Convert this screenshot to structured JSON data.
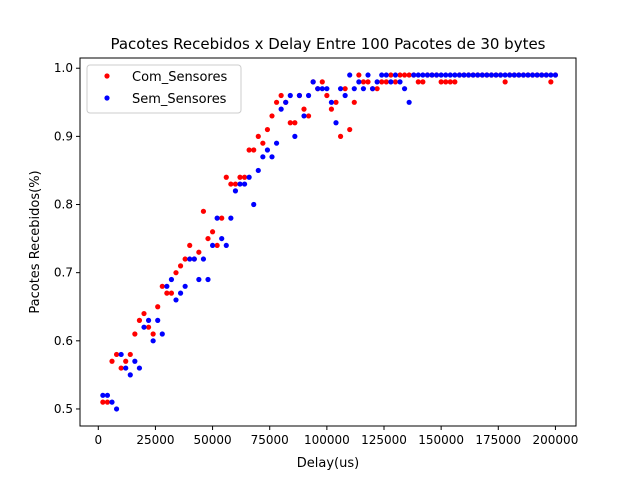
{
  "chart_data": {
    "type": "scatter",
    "title": "Pacotes Recebidos x Delay Entre 100 Pacotes de 30 bytes",
    "xlabel": "Delay(us)",
    "ylabel": "Pacotes Recebidos(%)",
    "xlim": [
      -8000,
      209000
    ],
    "ylim": [
      0.475,
      1.015
    ],
    "xticks": [
      0,
      25000,
      50000,
      75000,
      100000,
      125000,
      150000,
      175000,
      200000
    ],
    "xtick_labels": [
      "0",
      "25000",
      "50000",
      "75000",
      "100000",
      "125000",
      "150000",
      "175000",
      "200000"
    ],
    "yticks": [
      0.5,
      0.6,
      0.7,
      0.8,
      0.9,
      1.0
    ],
    "ytick_labels": [
      "0.5",
      "0.6",
      "0.7",
      "0.8",
      "0.9",
      "1.0"
    ],
    "legend_position": "upper-left",
    "series": [
      {
        "name": "Com_Sensores",
        "color": "#ff0000",
        "x": [
          2000,
          4000,
          6000,
          8000,
          10000,
          12000,
          14000,
          16000,
          18000,
          20000,
          22000,
          24000,
          26000,
          28000,
          30000,
          32000,
          34000,
          36000,
          38000,
          40000,
          42000,
          44000,
          46000,
          48000,
          50000,
          52000,
          54000,
          56000,
          58000,
          60000,
          62000,
          64000,
          66000,
          68000,
          70000,
          72000,
          74000,
          76000,
          78000,
          80000,
          82000,
          84000,
          86000,
          88000,
          90000,
          92000,
          94000,
          96000,
          98000,
          100000,
          102000,
          104000,
          106000,
          108000,
          110000,
          112000,
          114000,
          116000,
          118000,
          120000,
          122000,
          124000,
          126000,
          128000,
          130000,
          132000,
          134000,
          136000,
          138000,
          140000,
          142000,
          144000,
          146000,
          148000,
          150000,
          152000,
          154000,
          156000,
          158000,
          160000,
          162000,
          164000,
          166000,
          168000,
          170000,
          172000,
          174000,
          176000,
          178000,
          180000,
          182000,
          184000,
          186000,
          188000,
          190000,
          192000,
          194000,
          196000,
          198000,
          200000
        ],
        "y": [
          0.51,
          0.51,
          0.57,
          0.58,
          0.56,
          0.57,
          0.58,
          0.61,
          0.63,
          0.64,
          0.62,
          0.61,
          0.65,
          0.68,
          0.67,
          0.67,
          0.7,
          0.71,
          0.72,
          0.74,
          0.72,
          0.73,
          0.79,
          0.75,
          0.76,
          0.74,
          0.78,
          0.84,
          0.83,
          0.83,
          0.84,
          0.84,
          0.88,
          0.88,
          0.9,
          0.89,
          0.91,
          0.93,
          0.95,
          0.96,
          0.95,
          0.92,
          0.92,
          0.96,
          0.94,
          0.93,
          0.98,
          0.97,
          0.98,
          0.96,
          0.94,
          0.95,
          0.9,
          0.97,
          0.91,
          0.95,
          0.99,
          0.98,
          0.98,
          0.97,
          0.97,
          0.98,
          0.98,
          0.99,
          0.98,
          0.99,
          0.99,
          0.99,
          0.99,
          0.98,
          0.98,
          0.99,
          0.99,
          0.99,
          0.98,
          0.98,
          0.98,
          0.98,
          0.99,
          0.99,
          0.99,
          0.99,
          0.99,
          0.99,
          0.99,
          0.99,
          0.99,
          0.99,
          0.98,
          0.99,
          0.99,
          0.99,
          0.99,
          0.99,
          0.99,
          0.99,
          0.99,
          0.99,
          0.98,
          0.99
        ]
      },
      {
        "name": "Sem_Sensores",
        "color": "#0000ff",
        "x": [
          2000,
          4000,
          6000,
          8000,
          10000,
          12000,
          14000,
          16000,
          18000,
          20000,
          22000,
          24000,
          26000,
          28000,
          30000,
          32000,
          34000,
          36000,
          38000,
          40000,
          42000,
          44000,
          46000,
          48000,
          50000,
          52000,
          54000,
          56000,
          58000,
          60000,
          62000,
          64000,
          66000,
          68000,
          70000,
          72000,
          74000,
          76000,
          78000,
          80000,
          82000,
          84000,
          86000,
          88000,
          90000,
          92000,
          94000,
          96000,
          98000,
          100000,
          102000,
          104000,
          106000,
          108000,
          110000,
          112000,
          114000,
          116000,
          118000,
          120000,
          122000,
          124000,
          126000,
          128000,
          130000,
          132000,
          134000,
          136000,
          138000,
          140000,
          142000,
          144000,
          146000,
          148000,
          150000,
          152000,
          154000,
          156000,
          158000,
          160000,
          162000,
          164000,
          166000,
          168000,
          170000,
          172000,
          174000,
          176000,
          178000,
          180000,
          182000,
          184000,
          186000,
          188000,
          190000,
          192000,
          194000,
          196000,
          198000,
          200000
        ],
        "y": [
          0.52,
          0.52,
          0.51,
          0.5,
          0.58,
          0.56,
          0.55,
          0.57,
          0.56,
          0.62,
          0.63,
          0.6,
          0.63,
          0.61,
          0.68,
          0.69,
          0.66,
          0.67,
          0.68,
          0.72,
          0.72,
          0.69,
          0.72,
          0.69,
          0.74,
          0.78,
          0.75,
          0.74,
          0.78,
          0.82,
          0.83,
          0.83,
          0.84,
          0.8,
          0.85,
          0.87,
          0.88,
          0.87,
          0.89,
          0.94,
          0.95,
          0.96,
          0.9,
          0.96,
          0.93,
          0.96,
          0.98,
          0.97,
          0.97,
          0.97,
          0.95,
          0.92,
          0.97,
          0.96,
          0.99,
          0.97,
          0.98,
          0.97,
          0.99,
          0.97,
          0.98,
          0.99,
          0.99,
          0.98,
          0.99,
          0.98,
          0.97,
          0.95,
          0.99,
          0.99,
          0.99,
          0.99,
          0.99,
          0.99,
          0.99,
          0.99,
          0.99,
          0.99,
          0.99,
          0.99,
          0.99,
          0.99,
          0.99,
          0.99,
          0.99,
          0.99,
          0.99,
          0.99,
          0.99,
          0.99,
          0.99,
          0.99,
          0.99,
          0.99,
          0.99,
          0.99,
          0.99,
          0.99,
          0.99,
          0.99
        ]
      }
    ]
  }
}
